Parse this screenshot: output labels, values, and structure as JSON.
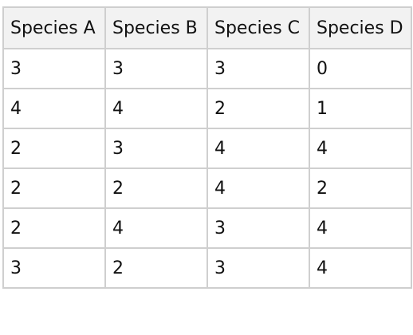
{
  "chart_data": {
    "type": "table",
    "columns": [
      "Species A",
      "Species B",
      "Species C",
      "Species D"
    ],
    "rows": [
      [
        "3",
        "3",
        "3",
        "0"
      ],
      [
        "4",
        "4",
        "2",
        "1"
      ],
      [
        "2",
        "3",
        "4",
        "4"
      ],
      [
        "2",
        "2",
        "4",
        "2"
      ],
      [
        "2",
        "4",
        "3",
        "4"
      ],
      [
        "3",
        "2",
        "3",
        "4"
      ]
    ]
  },
  "colors": {
    "header_background": "#f2f2f2",
    "border": "#cfcfcf",
    "text": "#111111"
  }
}
